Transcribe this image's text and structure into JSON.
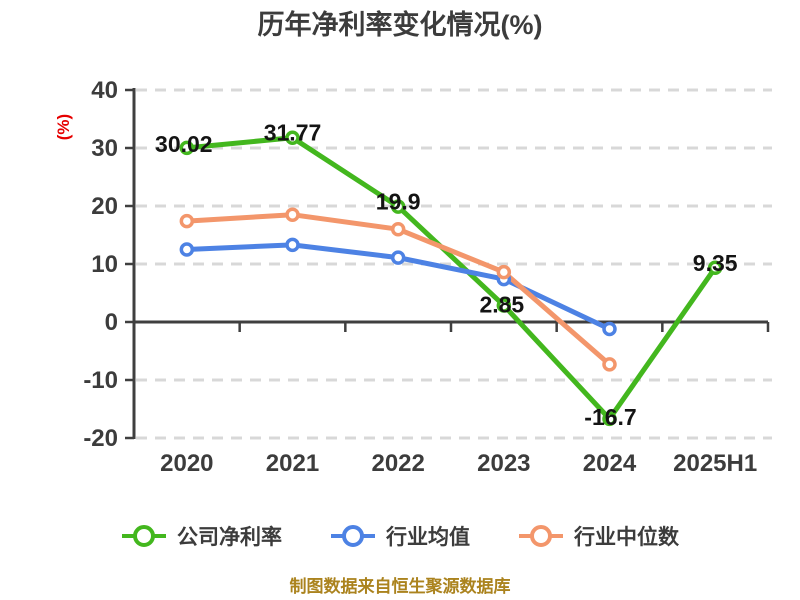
{
  "chart": {
    "title": "历年净利率变化情况(%)",
    "y_unit": "(%)",
    "footer": "制图数据来自恒生聚源数据库",
    "colors": {
      "axis": "#3f3f3f",
      "grid": "#d8d8d8",
      "tick_text": "#3c3c3c",
      "data_label": "#141414",
      "unit_label": "#e60000",
      "footer_text": "#ab831e",
      "background": "#ffffff"
    }
  },
  "chart_data": {
    "type": "line",
    "title": "历年净利率变化情况(%)",
    "xlabel": "",
    "ylabel": "(%)",
    "categories": [
      "2020",
      "2021",
      "2022",
      "2023",
      "2024",
      "2025H1"
    ],
    "series": [
      {
        "name": "公司净利率",
        "color": "#43b71e",
        "values": [
          30.02,
          31.77,
          19.9,
          2.85,
          -16.7,
          9.35
        ],
        "labels": [
          "30.02",
          "31.77",
          "19.9",
          "2.85",
          "-16.7",
          "9.35"
        ]
      },
      {
        "name": "行业均值",
        "color": "#4d82e4",
        "values": [
          12.5,
          13.3,
          11.1,
          7.4,
          -1.2
        ]
      },
      {
        "name": "行业中位数",
        "color": "#f3966b",
        "values": [
          17.4,
          18.5,
          16.0,
          8.6,
          -7.3
        ]
      }
    ],
    "ylim": [
      -20,
      40
    ],
    "yticks": [
      40,
      30,
      20,
      10,
      0,
      -10,
      -20
    ],
    "grid": "horizontal dashed",
    "marker": "circle white-filled colored-ring",
    "legend_position": "bottom"
  }
}
